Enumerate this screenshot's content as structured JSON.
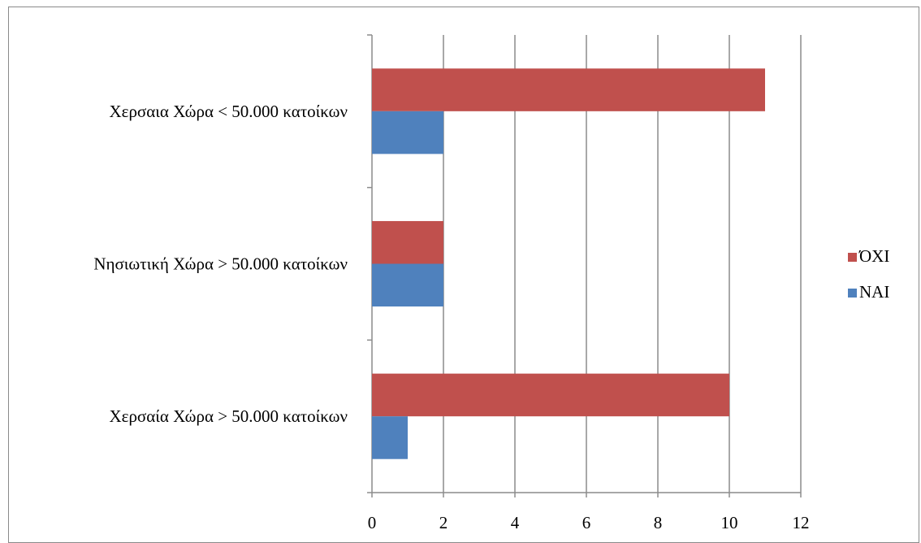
{
  "chart_data": {
    "type": "bar",
    "orientation": "horizontal",
    "categories": [
      "Χερσαια Χώρα < 50.000 κατοίκων",
      "Νησιωτική Χώρα > 50.000 κατοίκων",
      "Χερσαία Χώρα > 50.000 κατοίκων"
    ],
    "series": [
      {
        "name": "ΌΧΙ",
        "color": "#c0504d",
        "values": [
          11,
          2,
          10
        ]
      },
      {
        "name": "ΝΑΙ",
        "color": "#4f81bd",
        "values": [
          2,
          2,
          1
        ]
      }
    ],
    "xlim": [
      0,
      12
    ],
    "xticks": [
      "0",
      "2",
      "4",
      "6",
      "8",
      "10",
      "12"
    ],
    "grid": "vertical",
    "legend_position": "right",
    "title": "",
    "xlabel": "",
    "ylabel": ""
  }
}
